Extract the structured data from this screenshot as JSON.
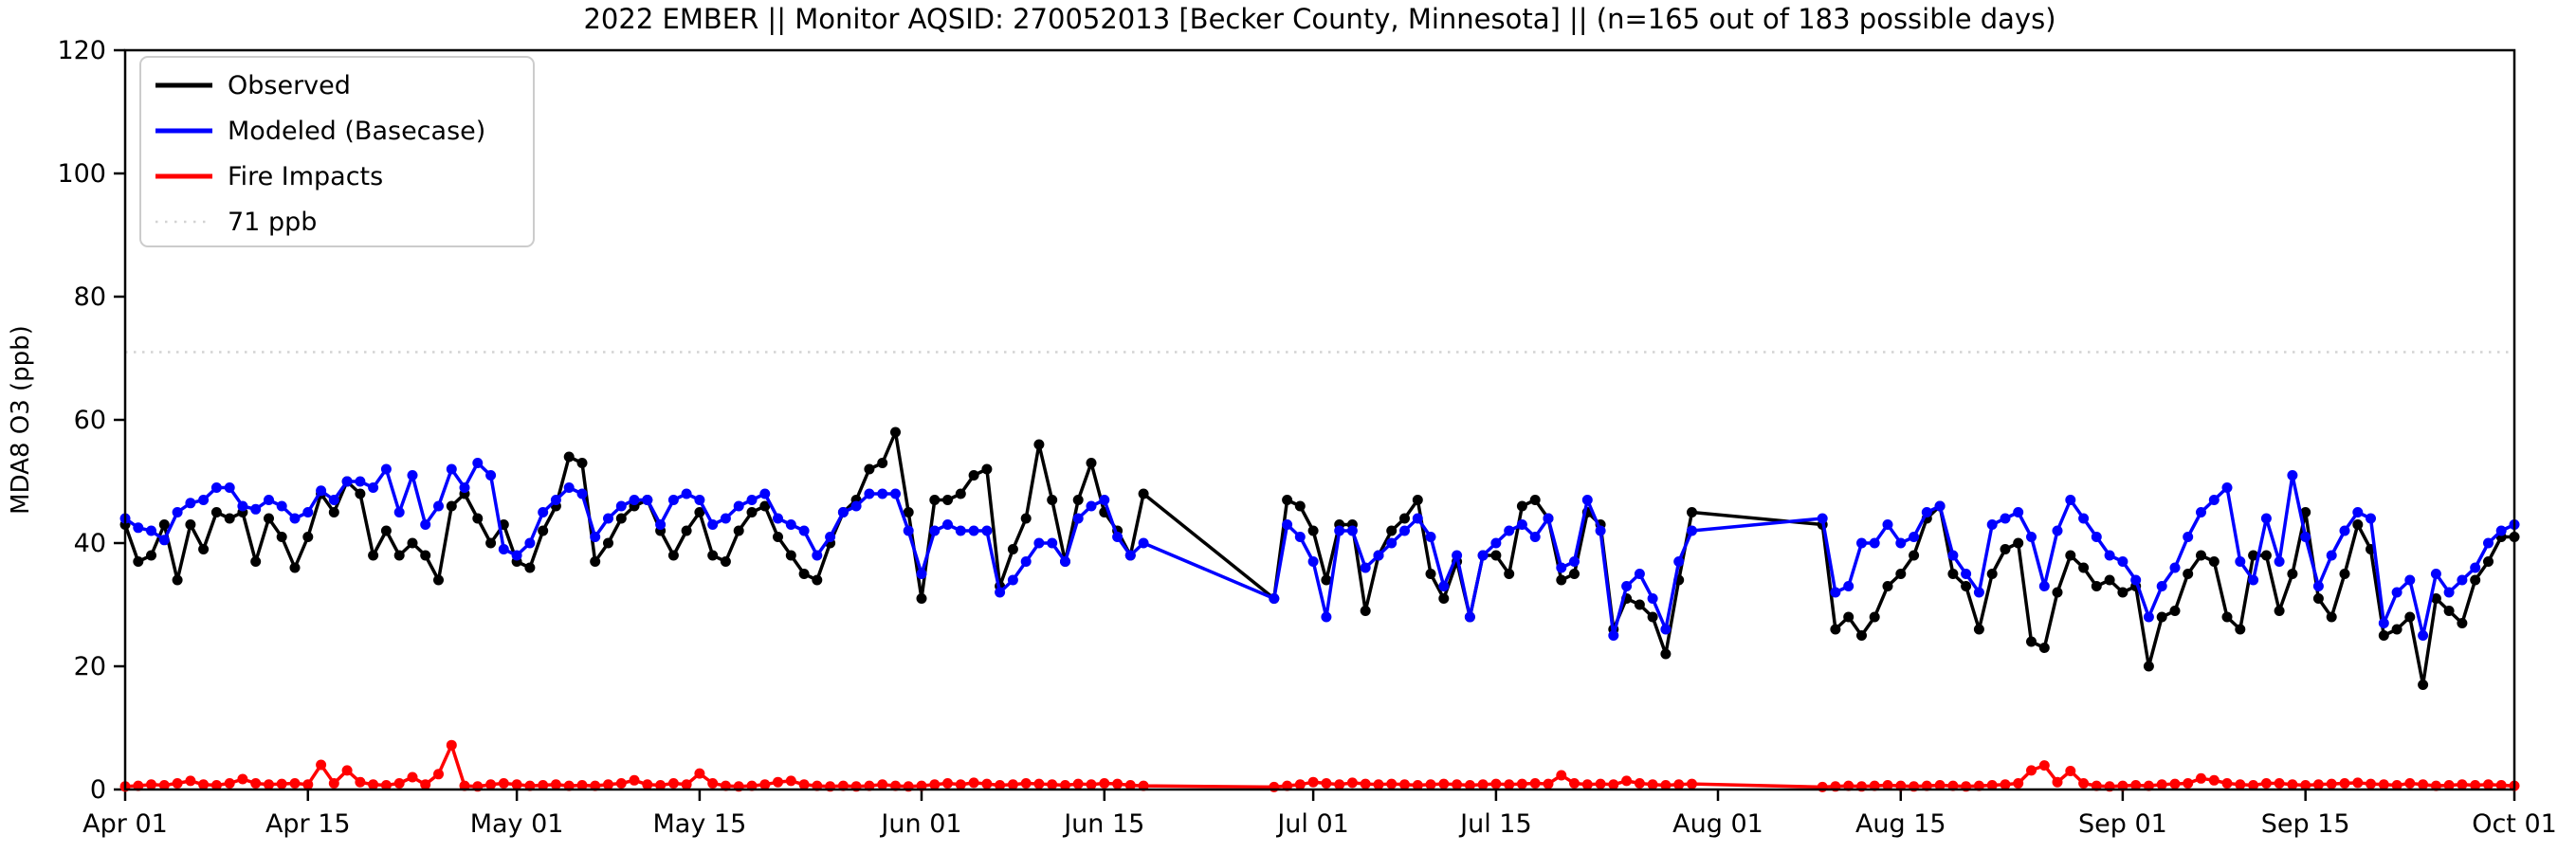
{
  "chart_data": {
    "type": "line",
    "title": "2022 EMBER || Monitor AQSID: 270052013 [Becker County, Minnesota] || (n=165 out of 183 possible days)",
    "xlabel": "",
    "ylabel": "MDA8 O3 (ppb)",
    "ylim": [
      0,
      120
    ],
    "yticks": [
      0,
      20,
      40,
      60,
      80,
      100,
      120
    ],
    "xtick_labels": [
      "Apr 01",
      "Apr 15",
      "May 01",
      "May 15",
      "Jun 01",
      "Jun 15",
      "Jul 01",
      "Jul 15",
      "Aug 01",
      "Aug 15",
      "Sep 01",
      "Sep 15",
      "Oct 01"
    ],
    "xtick_days": [
      0,
      14,
      30,
      44,
      61,
      75,
      91,
      105,
      122,
      136,
      153,
      167,
      183
    ],
    "days_span": 183,
    "n_points": 184,
    "missing_day_ranges": [
      "Jun 19 - Jun 27",
      "Jul 31 - Aug 08"
    ],
    "grid": false,
    "legend_position": "upper-left",
    "threshold": {
      "value": 71,
      "label": "71 ppb",
      "color": "#d3d3d3",
      "style": "dotted"
    },
    "colors": {
      "observed": "#000000",
      "modeled": "#0000ff",
      "fire": "#ff0000",
      "legend_border": "#cccccc"
    },
    "series": [
      {
        "name": "Observed",
        "color": "#000000",
        "marker": true,
        "values": [
          43,
          37,
          38,
          43,
          34,
          43,
          39,
          45,
          44,
          45,
          37,
          44,
          41,
          36,
          41,
          48,
          45,
          50,
          48,
          38,
          42,
          38,
          40,
          38,
          34,
          46,
          48,
          44,
          40,
          43,
          37,
          36,
          42,
          46,
          54,
          53,
          37,
          40,
          44,
          46,
          47,
          42,
          38,
          42,
          45,
          38,
          37,
          42,
          45,
          46,
          41,
          38,
          35,
          34,
          40,
          45,
          47,
          52,
          53,
          58,
          45,
          31,
          47,
          47,
          48,
          51,
          52,
          33,
          39,
          44,
          56,
          47,
          37,
          47,
          53,
          45,
          42,
          38,
          48,
          null,
          null,
          null,
          null,
          null,
          null,
          null,
          null,
          null,
          31,
          47,
          46,
          42,
          34,
          43,
          43,
          29,
          38,
          42,
          44,
          47,
          35,
          31,
          37,
          28,
          38,
          38,
          35,
          46,
          47,
          44,
          34,
          35,
          45,
          43,
          26,
          31,
          30,
          28,
          22,
          34,
          45,
          null,
          null,
          null,
          null,
          null,
          null,
          null,
          null,
          null,
          43,
          26,
          28,
          25,
          28,
          33,
          35,
          38,
          44,
          46,
          35,
          33,
          26,
          35,
          39,
          40,
          24,
          23,
          32,
          38,
          36,
          33,
          34,
          32,
          33,
          20,
          28,
          29,
          35,
          38,
          37,
          28,
          26,
          38,
          38,
          29,
          35,
          45,
          31,
          28,
          35,
          43,
          39,
          25,
          26,
          28,
          17,
          31,
          29,
          27,
          34,
          37,
          41,
          41
        ]
      },
      {
        "name": "Modeled (Basecase)",
        "color": "#0000ff",
        "marker": true,
        "values": [
          44,
          42.5,
          42,
          40.5,
          45,
          46.5,
          47,
          49,
          49,
          46,
          45.5,
          47,
          46,
          44,
          45,
          48.5,
          47,
          50,
          50,
          49,
          52,
          45,
          51,
          43,
          46,
          52,
          49,
          53,
          51,
          39,
          38,
          40,
          45,
          47,
          49,
          48,
          41,
          44,
          46,
          47,
          47,
          43,
          47,
          48,
          47,
          43,
          44,
          46,
          47,
          48,
          44,
          43,
          42,
          38,
          41,
          45,
          46,
          48,
          48,
          48,
          42,
          35,
          42,
          43,
          42,
          42,
          42,
          32,
          34,
          37,
          40,
          40,
          37,
          44,
          46,
          47,
          41,
          38,
          40,
          null,
          null,
          null,
          null,
          null,
          null,
          null,
          null,
          null,
          31,
          43,
          41,
          37,
          28,
          42,
          42,
          36,
          38,
          40,
          42,
          44,
          41,
          33,
          38,
          28,
          38,
          40,
          42,
          43,
          41,
          44,
          36,
          37,
          47,
          42,
          25,
          33,
          35,
          31,
          26,
          37,
          42,
          null,
          null,
          null,
          null,
          null,
          null,
          null,
          null,
          null,
          44,
          32,
          33,
          40,
          40,
          43,
          40,
          41,
          45,
          46,
          38,
          35,
          32,
          43,
          44,
          45,
          41,
          33,
          42,
          47,
          44,
          41,
          38,
          37,
          34,
          28,
          33,
          36,
          41,
          45,
          47,
          49,
          37,
          34,
          44,
          37,
          51,
          41,
          33,
          38,
          42,
          45,
          44,
          27,
          32,
          34,
          25,
          35,
          32,
          34,
          36,
          40,
          42,
          43
        ]
      },
      {
        "name": "Fire Impacts",
        "color": "#ff0000",
        "marker": true,
        "values": [
          0.5,
          0.6,
          0.8,
          0.7,
          1.0,
          1.4,
          0.8,
          0.7,
          1.0,
          1.7,
          1.0,
          0.8,
          0.9,
          1.0,
          0.8,
          4.0,
          1.0,
          3.1,
          1.2,
          0.8,
          0.7,
          1.0,
          2.0,
          0.8,
          2.5,
          7.2,
          0.6,
          0.5,
          0.8,
          1.0,
          0.8,
          0.6,
          0.7,
          0.8,
          0.6,
          0.7,
          0.6,
          0.8,
          1.0,
          1.5,
          0.8,
          0.7,
          1.0,
          0.8,
          2.6,
          1.0,
          0.6,
          0.5,
          0.6,
          0.8,
          1.2,
          1.4,
          0.8,
          0.6,
          0.5,
          0.6,
          0.5,
          0.6,
          0.8,
          0.6,
          0.5,
          0.6,
          0.8,
          1.0,
          0.8,
          1.1,
          0.9,
          0.7,
          0.8,
          1.0,
          0.9,
          0.8,
          0.7,
          0.9,
          0.8,
          1.0,
          0.9,
          0.7,
          0.6,
          null,
          null,
          null,
          null,
          null,
          null,
          null,
          null,
          null,
          0.4,
          0.6,
          0.8,
          1.2,
          1.0,
          0.8,
          1.1,
          0.9,
          0.8,
          0.9,
          0.8,
          0.7,
          0.8,
          0.9,
          0.8,
          0.7,
          0.8,
          0.9,
          0.8,
          0.9,
          1.0,
          0.9,
          2.3,
          1.0,
          0.8,
          0.9,
          0.8,
          1.4,
          1.0,
          0.8,
          0.7,
          0.8,
          0.9,
          null,
          null,
          null,
          null,
          null,
          null,
          null,
          null,
          null,
          0.4,
          0.5,
          0.6,
          0.5,
          0.6,
          0.7,
          0.6,
          0.5,
          0.6,
          0.7,
          0.6,
          0.5,
          0.6,
          0.7,
          0.8,
          1.0,
          3.1,
          3.9,
          1.2,
          3.0,
          1.0,
          0.6,
          0.5,
          0.6,
          0.7,
          0.6,
          0.8,
          0.9,
          1.0,
          1.8,
          1.5,
          1.0,
          0.8,
          0.7,
          1.0,
          1.0,
          0.8,
          0.7,
          0.8,
          0.9,
          1.0,
          1.1,
          0.9,
          0.8,
          0.7,
          1.0,
          0.8,
          0.6,
          0.7,
          0.8,
          0.7,
          0.8,
          0.7,
          0.6
        ]
      }
    ],
    "legend": {
      "items": [
        {
          "label": "Observed",
          "color": "#000000",
          "dash": "solid"
        },
        {
          "label": "Modeled (Basecase)",
          "color": "#0000ff",
          "dash": "solid"
        },
        {
          "label": "Fire Impacts",
          "color": "#ff0000",
          "dash": "solid"
        },
        {
          "label": "71 ppb",
          "color": "#d3d3d3",
          "dash": "dotted"
        }
      ]
    }
  }
}
